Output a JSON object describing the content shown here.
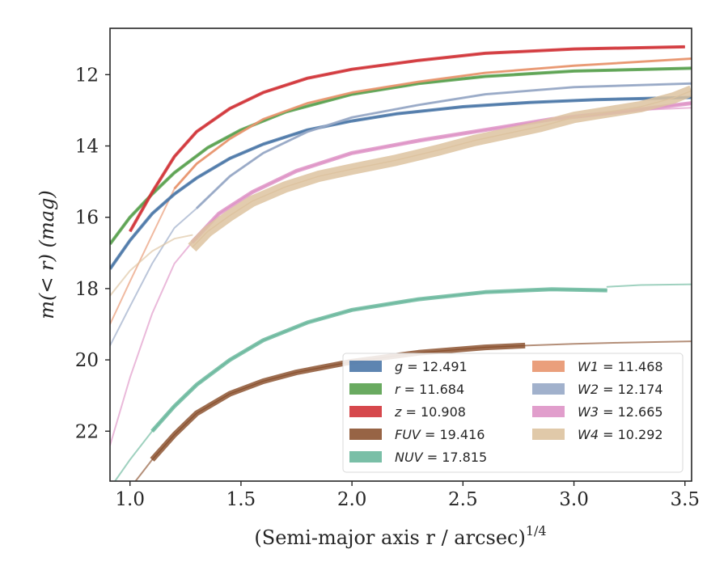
{
  "chart_data": {
    "type": "line",
    "title": "",
    "xlabel": "(Semi-major axis r / arcsec)",
    "xlabel_exponent": "1/4",
    "ylabel": "m(< r) (mag)",
    "xlim": [
      0.91,
      3.53
    ],
    "ylim": [
      23.4,
      10.7
    ],
    "y_inverted": true,
    "grid": false,
    "legend_placement": "lower-right",
    "xticks": [
      "1.0",
      "1.5",
      "2.0",
      "2.5",
      "3.0",
      "3.5"
    ],
    "yticks": [
      "12",
      "14",
      "16",
      "18",
      "20",
      "22"
    ],
    "series": [
      {
        "name": "g = 12.491",
        "label_var": "g",
        "label_val": "12.491",
        "color": "#4c78a8",
        "band": 4,
        "x": [
          0.91,
          1.0,
          1.1,
          1.2,
          1.3,
          1.45,
          1.6,
          1.8,
          2.0,
          2.2,
          2.5,
          2.8,
          3.1,
          3.53
        ],
        "y": [
          17.45,
          16.65,
          15.9,
          15.35,
          14.9,
          14.35,
          13.95,
          13.55,
          13.3,
          13.1,
          12.9,
          12.78,
          12.7,
          12.64
        ]
      },
      {
        "name": "r = 11.684",
        "label_var": "r",
        "label_val": "11.684",
        "color": "#59a14f",
        "band": 4,
        "x": [
          0.91,
          1.0,
          1.1,
          1.2,
          1.35,
          1.5,
          1.7,
          2.0,
          2.3,
          2.6,
          3.0,
          3.53
        ],
        "y": [
          16.75,
          16.0,
          15.35,
          14.75,
          14.05,
          13.55,
          13.05,
          12.55,
          12.25,
          12.05,
          11.9,
          11.82
        ]
      },
      {
        "name": "z = 10.908",
        "label_var": "z",
        "label_val": "10.908",
        "color": "#d13438",
        "band": 4,
        "x": [
          1.0,
          1.1,
          1.2,
          1.3,
          1.45,
          1.6,
          1.8,
          2.0,
          2.3,
          2.6,
          3.0,
          3.5
        ],
        "y": [
          16.4,
          15.3,
          14.3,
          13.6,
          12.95,
          12.5,
          12.1,
          11.85,
          11.6,
          11.4,
          11.28,
          11.22
        ]
      },
      {
        "name": "FUV = 19.416",
        "label_var": "FUV",
        "label_val": "19.416",
        "color": "#8c5331",
        "band": 7,
        "x": [
          1.1,
          1.2,
          1.3,
          1.45,
          1.6,
          1.75,
          2.0,
          2.3,
          2.6,
          2.78
        ],
        "y": [
          22.8,
          22.1,
          21.5,
          20.95,
          20.6,
          20.35,
          20.05,
          19.8,
          19.65,
          19.6
        ]
      },
      {
        "name": "NUV = 17.815",
        "label_var": "NUV",
        "label_val": "17.815",
        "color": "#6bb89d",
        "band": 5,
        "x": [
          1.1,
          1.2,
          1.3,
          1.45,
          1.6,
          1.8,
          2.0,
          2.3,
          2.6,
          2.9,
          3.15
        ],
        "y": [
          22.0,
          21.3,
          20.7,
          20.0,
          19.45,
          18.95,
          18.6,
          18.3,
          18.1,
          18.02,
          18.05
        ]
      },
      {
        "name": "W1 = 11.468",
        "label_var": "W1",
        "label_val": "11.468",
        "color": "#e8956e",
        "band": 3,
        "x": [
          1.2,
          1.3,
          1.45,
          1.6,
          1.8,
          2.0,
          2.3,
          2.6,
          3.0,
          3.53
        ],
        "y": [
          15.2,
          14.5,
          13.8,
          13.25,
          12.8,
          12.5,
          12.2,
          11.95,
          11.75,
          11.55
        ]
      },
      {
        "name": "W2 = 12.174",
        "label_var": "W2",
        "label_val": "12.174",
        "color": "#97a8c6",
        "band": 3,
        "x": [
          1.3,
          1.45,
          1.6,
          1.8,
          2.0,
          2.3,
          2.6,
          3.0,
          3.53
        ],
        "y": [
          15.75,
          14.85,
          14.2,
          13.6,
          13.2,
          12.85,
          12.55,
          12.35,
          12.25
        ]
      },
      {
        "name": "W3 = 12.665",
        "label_var": "W3",
        "label_val": "12.665",
        "color": "#de93c6",
        "band": 5,
        "x": [
          1.28,
          1.4,
          1.55,
          1.75,
          2.0,
          2.3,
          2.6,
          2.9,
          3.2,
          3.53
        ],
        "y": [
          16.7,
          15.9,
          15.3,
          14.7,
          14.2,
          13.85,
          13.55,
          13.25,
          13.05,
          12.8
        ]
      },
      {
        "name": "W4 = 10.292",
        "label_var": "W4",
        "label_val": "10.292",
        "color": "#ddc3a0",
        "band": 14,
        "x": [
          1.28,
          1.35,
          1.45,
          1.55,
          1.7,
          1.85,
          2.0,
          2.2,
          2.4,
          2.55,
          2.7,
          2.85,
          3.0,
          3.15,
          3.3,
          3.45,
          3.53
        ],
        "y": [
          16.85,
          16.4,
          15.95,
          15.55,
          15.15,
          14.85,
          14.65,
          14.4,
          14.1,
          13.85,
          13.65,
          13.45,
          13.2,
          13.05,
          12.9,
          12.65,
          12.45
        ]
      }
    ],
    "faint_extensions": [
      {
        "color": "#e8956e",
        "x": [
          0.91,
          1.0,
          1.1,
          1.2
        ],
        "y": [
          19.0,
          17.8,
          16.5,
          15.2
        ]
      },
      {
        "color": "#97a8c6",
        "x": [
          0.91,
          1.0,
          1.1,
          1.2,
          1.3
        ],
        "y": [
          19.6,
          18.5,
          17.3,
          16.3,
          15.75
        ]
      },
      {
        "color": "#de93c6",
        "x": [
          0.91,
          1.0,
          1.1,
          1.2,
          1.28
        ],
        "y": [
          22.4,
          20.5,
          18.7,
          17.3,
          16.7
        ]
      },
      {
        "color": "#ddc3a0",
        "x": [
          0.91,
          1.0,
          1.1,
          1.2,
          1.28
        ],
        "y": [
          18.2,
          17.5,
          16.95,
          16.6,
          16.5
        ]
      },
      {
        "color": "#6bb89d",
        "x": [
          0.91,
          1.0,
          1.1
        ],
        "y": [
          23.6,
          22.8,
          22.0
        ]
      },
      {
        "color": "#8c5331",
        "x": [
          1.0,
          1.05,
          1.1
        ],
        "y": [
          23.6,
          23.2,
          22.8
        ]
      },
      {
        "color": "#6bb89d",
        "x": [
          3.15,
          3.3,
          3.53
        ],
        "y": [
          17.95,
          17.9,
          17.88
        ]
      },
      {
        "color": "#8c5331",
        "x": [
          2.78,
          3.0,
          3.2,
          3.53
        ],
        "y": [
          19.6,
          19.55,
          19.52,
          19.48
        ]
      },
      {
        "color": "#de93c6",
        "x": [
          3.2,
          3.35,
          3.53
        ],
        "y": [
          13.05,
          12.98,
          12.93
        ]
      }
    ]
  }
}
